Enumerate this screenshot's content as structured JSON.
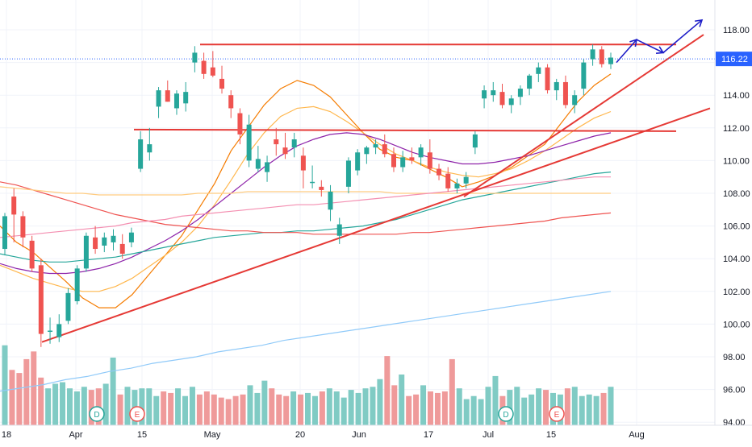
{
  "chart_data": {
    "type": "candlestick",
    "symbol_last_price": "116.22",
    "price_axis": {
      "range": [
        94,
        119
      ],
      "tick_labels": [
        "118.00",
        "116.00",
        "114.00",
        "112.00",
        "110.00",
        "108.00",
        "106.00",
        "104.00",
        "102.00",
        "100.00",
        "98.00",
        "96.00",
        "94.00"
      ],
      "tick_values": [
        118,
        116,
        114,
        112,
        110,
        108,
        106,
        104,
        102,
        100,
        98,
        96,
        94
      ]
    },
    "time_axis": {
      "labels": [
        "18",
        "Apr",
        "15",
        "May",
        "20",
        "Jun",
        "17",
        "Jul",
        "15",
        "Aug"
      ],
      "label_bar_index": [
        0,
        4,
        8,
        12,
        17,
        21,
        25,
        29,
        33,
        38
      ]
    },
    "event_markers": [
      {
        "label": "D",
        "bar_index": 5,
        "kind": "dividend"
      },
      {
        "label": "E",
        "bar_index": 7,
        "kind": "earnings"
      },
      {
        "label": "D",
        "bar_index": 29.5,
        "kind": "dividend"
      },
      {
        "label": "E",
        "bar_index": 32,
        "kind": "earnings"
      }
    ],
    "candles": [
      {
        "o": 104.6,
        "h": 106.8,
        "l": 104.2,
        "c": 106.6
      },
      {
        "o": 107.8,
        "h": 108.3,
        "l": 105.0,
        "c": 106.7
      },
      {
        "o": 106.6,
        "h": 106.9,
        "l": 104.7,
        "c": 105.3
      },
      {
        "o": 105.1,
        "h": 105.4,
        "l": 103.2,
        "c": 103.4
      },
      {
        "o": 103.6,
        "h": 104.0,
        "l": 98.6,
        "c": 99.4
      },
      {
        "o": 99.6,
        "h": 100.4,
        "l": 98.8,
        "c": 99.6
      },
      {
        "o": 99.2,
        "h": 100.6,
        "l": 98.9,
        "c": 100.0
      },
      {
        "o": 100.2,
        "h": 102.2,
        "l": 100.0,
        "c": 101.9
      },
      {
        "o": 101.4,
        "h": 103.6,
        "l": 101.2,
        "c": 103.4
      },
      {
        "o": 103.4,
        "h": 105.6,
        "l": 103.2,
        "c": 105.4
      },
      {
        "o": 105.3,
        "h": 106.0,
        "l": 104.3,
        "c": 104.6
      },
      {
        "o": 104.8,
        "h": 105.6,
        "l": 104.4,
        "c": 105.3
      },
      {
        "o": 105.0,
        "h": 105.8,
        "l": 104.5,
        "c": 105.4
      },
      {
        "o": 104.9,
        "h": 105.5,
        "l": 104.0,
        "c": 104.3
      },
      {
        "o": 105.0,
        "h": 105.9,
        "l": 104.7,
        "c": 105.6
      },
      {
        "o": 109.5,
        "h": 111.8,
        "l": 109.3,
        "c": 111.3
      },
      {
        "o": 110.5,
        "h": 112.0,
        "l": 110.0,
        "c": 111.0
      },
      {
        "o": 113.3,
        "h": 114.5,
        "l": 112.6,
        "c": 114.3
      },
      {
        "o": 114.3,
        "h": 114.9,
        "l": 113.6,
        "c": 113.6
      },
      {
        "o": 113.2,
        "h": 114.3,
        "l": 112.8,
        "c": 114.1
      },
      {
        "o": 113.5,
        "h": 114.8,
        "l": 113.0,
        "c": 114.2
      },
      {
        "o": 116.0,
        "h": 117.0,
        "l": 115.4,
        "c": 116.6
      },
      {
        "o": 116.1,
        "h": 116.6,
        "l": 115.0,
        "c": 115.3
      },
      {
        "o": 115.7,
        "h": 116.7,
        "l": 115.1,
        "c": 115.2
      },
      {
        "o": 115.0,
        "h": 115.8,
        "l": 114.1,
        "c": 114.4
      },
      {
        "o": 114.0,
        "h": 114.3,
        "l": 112.6,
        "c": 113.2
      },
      {
        "o": 112.9,
        "h": 113.2,
        "l": 111.0,
        "c": 111.6
      },
      {
        "o": 110.0,
        "h": 112.8,
        "l": 109.6,
        "c": 112.2
      },
      {
        "o": 109.5,
        "h": 110.9,
        "l": 109.3,
        "c": 110.1
      },
      {
        "o": 109.3,
        "h": 110.3,
        "l": 108.7,
        "c": 109.9
      },
      {
        "o": 111.3,
        "h": 112.0,
        "l": 110.3,
        "c": 111.0
      },
      {
        "o": 110.8,
        "h": 111.7,
        "l": 110.1,
        "c": 110.4
      },
      {
        "o": 110.8,
        "h": 111.7,
        "l": 110.2,
        "c": 111.3
      },
      {
        "o": 110.3,
        "h": 110.8,
        "l": 108.3,
        "c": 109.4
      },
      {
        "o": 108.7,
        "h": 109.7,
        "l": 108.3,
        "c": 108.7
      },
      {
        "o": 108.4,
        "h": 108.8,
        "l": 107.8,
        "c": 108.2
      },
      {
        "o": 107.0,
        "h": 108.5,
        "l": 106.3,
        "c": 108.1
      },
      {
        "o": 105.4,
        "h": 106.5,
        "l": 104.9,
        "c": 106.1
      }
    ],
    "candle_tail": [
      {
        "o": 108.4,
        "h": 110.2,
        "l": 108.0,
        "c": 110.0
      },
      {
        "o": 109.4,
        "h": 110.7,
        "l": 109.1,
        "c": 110.5
      },
      {
        "o": 110.4,
        "h": 110.9,
        "l": 109.8,
        "c": 110.8
      },
      {
        "o": 110.8,
        "h": 111.3,
        "l": 110.4,
        "c": 111.0
      },
      {
        "o": 111.0,
        "h": 111.6,
        "l": 110.2,
        "c": 110.4
      },
      {
        "o": 110.4,
        "h": 110.8,
        "l": 109.3,
        "c": 109.6
      },
      {
        "o": 109.6,
        "h": 110.6,
        "l": 109.3,
        "c": 110.2
      },
      {
        "o": 110.2,
        "h": 110.8,
        "l": 109.8,
        "c": 110.0
      },
      {
        "o": 110.2,
        "h": 111.0,
        "l": 109.7,
        "c": 110.8
      },
      {
        "o": 110.5,
        "h": 111.3,
        "l": 109.2,
        "c": 109.5
      },
      {
        "o": 109.5,
        "h": 109.8,
        "l": 108.8,
        "c": 109.1
      },
      {
        "o": 109.2,
        "h": 109.6,
        "l": 108.1,
        "c": 108.3
      },
      {
        "o": 108.3,
        "h": 108.9,
        "l": 108.0,
        "c": 108.6
      },
      {
        "o": 108.6,
        "h": 109.3,
        "l": 108.3,
        "c": 109.0
      },
      {
        "o": 110.8,
        "h": 111.8,
        "l": 110.4,
        "c": 111.6
      },
      {
        "o": 113.8,
        "h": 114.6,
        "l": 113.2,
        "c": 114.3
      },
      {
        "o": 114.0,
        "h": 114.8,
        "l": 113.6,
        "c": 114.3
      },
      {
        "o": 114.2,
        "h": 114.7,
        "l": 113.2,
        "c": 113.4
      },
      {
        "o": 113.4,
        "h": 114.0,
        "l": 112.9,
        "c": 113.8
      },
      {
        "o": 113.9,
        "h": 114.6,
        "l": 113.4,
        "c": 114.4
      },
      {
        "o": 114.4,
        "h": 115.3,
        "l": 114.0,
        "c": 115.2
      },
      {
        "o": 115.3,
        "h": 116.0,
        "l": 114.8,
        "c": 115.7
      },
      {
        "o": 115.7,
        "h": 115.9,
        "l": 114.1,
        "c": 114.3
      },
      {
        "o": 114.3,
        "h": 115.0,
        "l": 113.7,
        "c": 114.8
      },
      {
        "o": 114.8,
        "h": 115.2,
        "l": 113.2,
        "c": 113.4
      },
      {
        "o": 113.4,
        "h": 114.3,
        "l": 112.9,
        "c": 114.0
      },
      {
        "o": 114.4,
        "h": 116.2,
        "l": 114.0,
        "c": 116.0
      },
      {
        "o": 116.2,
        "h": 117.1,
        "l": 115.8,
        "c": 116.8
      },
      {
        "o": 116.8,
        "h": 117.0,
        "l": 115.7,
        "c": 115.9
      },
      {
        "o": 115.9,
        "h": 116.6,
        "l": 115.6,
        "c": 116.3
      }
    ],
    "volume": [
      52,
      36,
      34,
      43,
      48,
      31,
      24,
      27,
      28,
      24,
      22,
      25,
      23,
      24,
      27,
      44,
      20,
      25,
      23,
      24,
      24,
      19,
      22,
      21,
      24,
      19,
      25,
      20,
      22,
      20,
      18,
      17,
      19,
      20,
      26,
      21,
      29,
      24,
      20,
      19,
      22,
      20,
      21,
      19,
      22,
      24,
      22,
      18,
      23,
      21,
      24,
      25,
      30,
      45,
      26,
      33,
      19,
      20,
      26,
      22,
      21,
      22,
      43,
      24,
      17,
      19,
      17,
      25,
      32,
      19,
      23,
      25,
      18,
      20,
      24,
      23,
      21,
      20,
      24,
      25,
      19,
      20,
      19,
      21,
      25
    ],
    "moving_averages": [
      {
        "color": "#f57c00",
        "values": [
          106.0,
          105.0,
          104.4,
          103.5,
          102.6,
          101.6,
          101.0,
          101.0,
          101.8,
          103.0,
          104.2,
          105.4,
          107.0,
          108.6,
          110.6,
          112.0,
          113.4,
          114.4,
          114.9,
          114.6,
          113.9,
          112.8,
          111.7,
          110.7,
          110.2,
          110.0,
          109.5,
          109.0,
          108.4,
          108.7,
          109.1,
          109.6,
          110.3,
          111.0,
          112.3,
          113.6,
          114.6,
          115.3
        ]
      },
      {
        "color": "#ffb74d",
        "values": [
          103.6,
          103.2,
          102.8,
          102.5,
          102.2,
          102.0,
          102.0,
          102.3,
          102.8,
          103.5,
          104.2,
          105.0,
          106.0,
          107.3,
          108.8,
          110.4,
          111.7,
          112.7,
          113.2,
          113.3,
          113.0,
          112.4,
          111.7,
          111.0,
          110.4,
          110.0,
          109.6,
          109.3,
          109.1,
          109.0,
          109.2,
          109.5,
          110.0,
          110.6,
          111.3,
          112.0,
          112.6,
          113.0
        ]
      },
      {
        "color": "#8e24aa",
        "values": [
          103.7,
          103.4,
          103.2,
          103.1,
          103.1,
          103.2,
          103.4,
          103.7,
          104.1,
          104.6,
          105.1,
          105.7,
          106.4,
          107.2,
          108.0,
          108.8,
          109.6,
          110.3,
          110.9,
          111.3,
          111.6,
          111.7,
          111.6,
          111.3,
          110.9,
          110.5,
          110.2,
          110.0,
          109.8,
          109.8,
          109.9,
          110.1,
          110.3,
          110.6,
          110.9,
          111.2,
          111.5,
          111.7
        ]
      },
      {
        "color": "#26a69a",
        "values": [
          104.3,
          104.1,
          103.9,
          103.8,
          103.8,
          103.9,
          104.0,
          104.1,
          104.3,
          104.5,
          104.7,
          104.9,
          105.1,
          105.3,
          105.4,
          105.5,
          105.6,
          105.6,
          105.7,
          105.7,
          105.8,
          105.9,
          106.0,
          106.2,
          106.4,
          106.7,
          107.0,
          107.3,
          107.6,
          107.8,
          108.0,
          108.2,
          108.4,
          108.6,
          108.8,
          109.0,
          109.2,
          109.3
        ]
      },
      {
        "color": "#ef5350",
        "values": [
          108.7,
          108.5,
          108.2,
          107.9,
          107.6,
          107.3,
          107.0,
          106.7,
          106.5,
          106.3,
          106.1,
          106.0,
          105.9,
          105.8,
          105.7,
          105.7,
          105.6,
          105.6,
          105.6,
          105.5,
          105.5,
          105.5,
          105.5,
          105.5,
          105.5,
          105.6,
          105.6,
          105.7,
          105.8,
          105.9,
          106.0,
          106.1,
          106.2,
          106.3,
          106.5,
          106.6,
          106.7,
          106.8
        ]
      },
      {
        "color": "#ffcc80",
        "values": [
          108.4,
          108.3,
          108.2,
          108.1,
          108.0,
          108.0,
          107.9,
          107.9,
          107.9,
          107.9,
          107.9,
          107.9,
          108.0,
          108.0,
          108.0,
          108.1,
          108.1,
          108.1,
          108.1,
          108.1,
          108.1,
          108.1,
          108.1,
          108.1,
          108.0,
          108.0,
          108.0,
          108.0,
          108.0,
          108.0,
          108.0,
          108.0,
          108.0,
          108.0,
          108.0,
          108.0,
          108.0,
          108.0
        ]
      },
      {
        "color": "#f48fb1",
        "values": [
          105.3,
          105.4,
          105.5,
          105.6,
          105.7,
          105.8,
          105.9,
          106.0,
          106.2,
          106.3,
          106.4,
          106.6,
          106.7,
          106.8,
          106.9,
          107.0,
          107.1,
          107.2,
          107.3,
          107.3,
          107.4,
          107.5,
          107.6,
          107.7,
          107.8,
          107.9,
          108.0,
          108.1,
          108.2,
          108.3,
          108.4,
          108.5,
          108.6,
          108.7,
          108.8,
          108.9,
          109.0,
          109.0
        ]
      },
      {
        "color": "#90caf9",
        "values": [
          95.9,
          96.1,
          96.3,
          96.6,
          96.8,
          97.1,
          97.3,
          97.6,
          97.8,
          98.0,
          98.3,
          98.5,
          98.7,
          99.0,
          99.2,
          99.4,
          99.6,
          99.8,
          100.0,
          100.2,
          100.4,
          100.6,
          100.8,
          101.0,
          101.2,
          101.4,
          101.6,
          101.8,
          102.0
        ]
      }
    ],
    "drawings": {
      "resistance_top": {
        "from": [
          3,
          117.1
        ],
        "to": [
          40,
          117.1
        ]
      },
      "resistance_mid": {
        "from": [
          7,
          111.9
        ],
        "to": [
          41,
          111.8
        ]
      },
      "support_lower": {
        "from": [
          1,
          98.9
        ],
        "to": [
          44,
          113.2
        ]
      },
      "support_upper": {
        "from": [
          28,
          107.8
        ],
        "to": [
          43,
          117.7
        ]
      },
      "projection_arrows": [
        [
          116.0,
          117.4,
          116.6,
          118.6
        ]
      ]
    },
    "grid": true,
    "legend": "none"
  }
}
